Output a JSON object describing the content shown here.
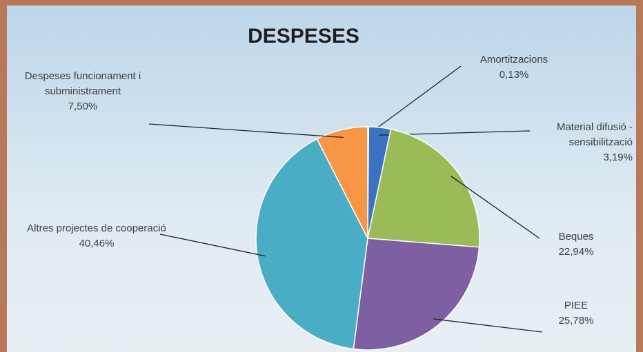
{
  "chart_data": {
    "type": "pie",
    "title": "DESPESES",
    "categories": [
      "Amortitzacions",
      "Material difusió - sensibilització",
      "Beques",
      "PIEE",
      "Altres projectes de cooperació",
      "Despeses funcionament i subministrament"
    ],
    "values": [
      0.13,
      3.19,
      22.94,
      25.78,
      40.46,
      7.5
    ],
    "value_labels": [
      "0,13%",
      "3,19%",
      "22,94%",
      "25,78%",
      "40,46%",
      "7,50%"
    ],
    "colors": [
      "#1f497d",
      "#3c72c2",
      "#9bbb59",
      "#7e5fa2",
      "#4bacc6",
      "#f79646"
    ]
  }
}
